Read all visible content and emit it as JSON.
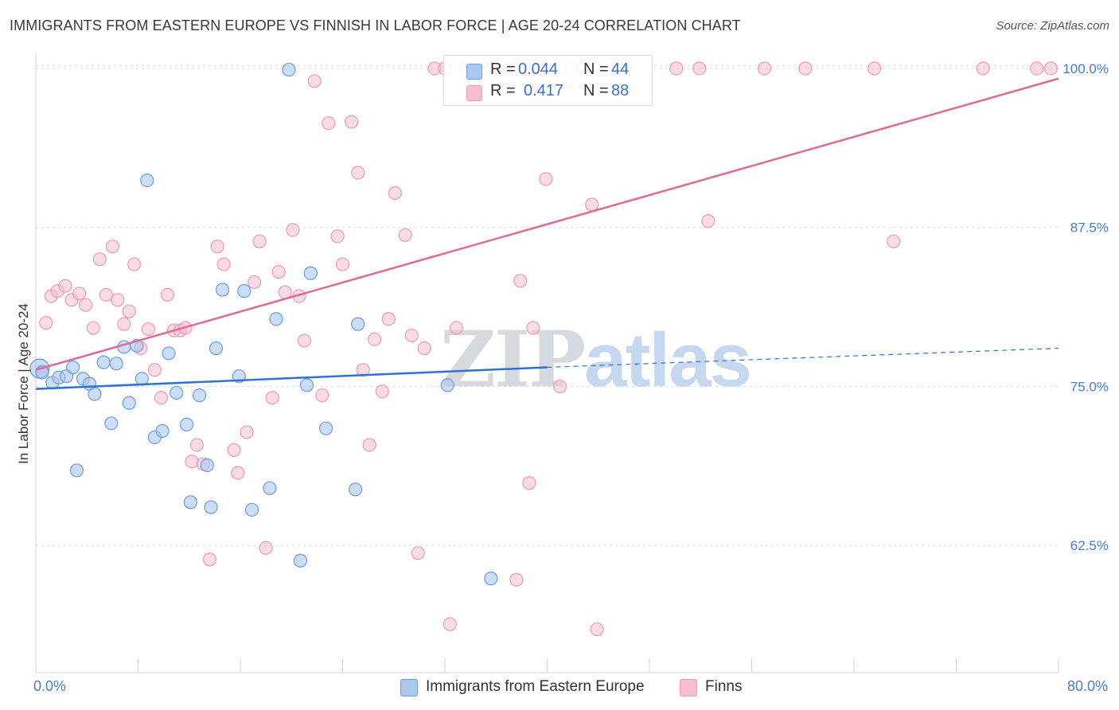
{
  "title": "IMMIGRANTS FROM EASTERN EUROPE VS FINNISH IN LABOR FORCE | AGE 20-24 CORRELATION CHART",
  "source": "Source: ZipAtlas.com",
  "watermark": {
    "part1": "ZIP",
    "part2": "atlas"
  },
  "colors": {
    "series1_fill": "#aac8f0",
    "series1_stroke": "#6c9be0",
    "series1_line": "#2f72d0",
    "series2_fill": "#f7bdd0",
    "series2_stroke": "#e99ab5",
    "series2_line": "#e0689a",
    "axis_label": "#4a7bd0",
    "grid": "#d8dce2"
  },
  "legend_top": {
    "rows": [
      {
        "r_label": "R =",
        "r_value": "0.044",
        "n_label": "N =",
        "n_value": "44"
      },
      {
        "r_label": "R =",
        "r_value": "0.417",
        "n_label": "N =",
        "n_value": "88"
      }
    ]
  },
  "legend_bottom": {
    "items": [
      {
        "label": "Immigrants from Eastern Europe"
      },
      {
        "label": "Finns"
      }
    ]
  },
  "chart_data": {
    "type": "scatter",
    "title": "IMMIGRANTS FROM EASTERN EUROPE VS FINNISH IN LABOR FORCE | AGE 20-24 CORRELATION CHART",
    "xlabel": "",
    "ylabel": "In Labor Force | Age 20-24",
    "xlim": [
      0,
      80
    ],
    "ylim": [
      52.5,
      101.5
    ],
    "x_tick_labels": [
      "0.0%",
      "80.0%"
    ],
    "y_ticks": [
      62.5,
      75.0,
      87.5,
      100.0
    ],
    "y_tick_labels": [
      "62.5%",
      "75.0%",
      "87.5%",
      "100.0%"
    ],
    "grid": true,
    "legend_position": "bottom",
    "series": [
      {
        "name": "Immigrants from Eastern Europe",
        "R": 0.044,
        "N": 44,
        "trend": {
          "x": [
            0,
            40
          ],
          "y": [
            74.8,
            76.5
          ],
          "dashed_extension_to": [
            80,
            78.0
          ]
        },
        "points": [
          [
            0.3,
            76.4
          ],
          [
            0.5,
            76.1
          ],
          [
            1.3,
            75.3
          ],
          [
            1.8,
            75.7
          ],
          [
            2.4,
            75.8
          ],
          [
            2.9,
            76.5
          ],
          [
            3.2,
            68.4
          ],
          [
            3.7,
            75.6
          ],
          [
            4.2,
            75.2
          ],
          [
            4.6,
            74.4
          ],
          [
            5.3,
            76.9
          ],
          [
            5.9,
            72.1
          ],
          [
            6.3,
            76.8
          ],
          [
            6.9,
            78.1
          ],
          [
            7.3,
            73.7
          ],
          [
            7.9,
            78.2
          ],
          [
            8.3,
            75.6
          ],
          [
            8.7,
            91.2
          ],
          [
            9.3,
            71.0
          ],
          [
            9.9,
            71.5
          ],
          [
            10.4,
            77.6
          ],
          [
            11.0,
            74.5
          ],
          [
            11.8,
            72.0
          ],
          [
            12.1,
            65.9
          ],
          [
            12.8,
            74.3
          ],
          [
            13.4,
            68.8
          ],
          [
            13.7,
            65.5
          ],
          [
            14.1,
            78.0
          ],
          [
            14.6,
            82.6
          ],
          [
            15.9,
            75.8
          ],
          [
            16.3,
            82.5
          ],
          [
            16.9,
            65.3
          ],
          [
            18.3,
            67.0
          ],
          [
            18.8,
            80.3
          ],
          [
            19.8,
            99.9
          ],
          [
            20.7,
            61.3
          ],
          [
            21.2,
            75.1
          ],
          [
            21.5,
            83.9
          ],
          [
            22.7,
            71.7
          ],
          [
            25.0,
            66.9
          ],
          [
            25.2,
            79.9
          ],
          [
            32.2,
            75.1
          ],
          [
            35.0,
            100.0
          ],
          [
            35.6,
            59.9
          ]
        ]
      },
      {
        "name": "Finns",
        "R": 0.417,
        "N": 88,
        "trend": {
          "x": [
            0,
            80
          ],
          "y": [
            76.3,
            99.2
          ]
        },
        "points": [
          [
            0.5,
            76.2
          ],
          [
            0.8,
            80.0
          ],
          [
            1.2,
            82.1
          ],
          [
            1.7,
            82.5
          ],
          [
            2.3,
            82.9
          ],
          [
            2.8,
            81.8
          ],
          [
            3.4,
            82.3
          ],
          [
            3.9,
            81.4
          ],
          [
            4.5,
            79.6
          ],
          [
            5.0,
            85.0
          ],
          [
            5.5,
            82.2
          ],
          [
            6.0,
            86.0
          ],
          [
            6.4,
            81.8
          ],
          [
            6.9,
            79.9
          ],
          [
            7.3,
            80.9
          ],
          [
            7.7,
            84.6
          ],
          [
            8.2,
            78.0
          ],
          [
            8.8,
            79.5
          ],
          [
            9.3,
            76.3
          ],
          [
            9.8,
            74.1
          ],
          [
            10.3,
            82.2
          ],
          [
            10.8,
            79.4
          ],
          [
            11.3,
            79.4
          ],
          [
            11.7,
            79.6
          ],
          [
            12.2,
            69.1
          ],
          [
            12.6,
            70.4
          ],
          [
            13.1,
            68.9
          ],
          [
            13.6,
            61.4
          ],
          [
            14.2,
            86.0
          ],
          [
            14.7,
            84.6
          ],
          [
            15.5,
            70.0
          ],
          [
            15.8,
            68.2
          ],
          [
            16.5,
            71.4
          ],
          [
            17.1,
            83.2
          ],
          [
            17.5,
            86.4
          ],
          [
            18.0,
            62.3
          ],
          [
            18.5,
            74.1
          ],
          [
            19.0,
            84.0
          ],
          [
            19.5,
            82.4
          ],
          [
            20.1,
            87.3
          ],
          [
            20.6,
            82.1
          ],
          [
            21.0,
            78.6
          ],
          [
            21.8,
            99.0
          ],
          [
            22.4,
            74.3
          ],
          [
            22.9,
            95.7
          ],
          [
            23.6,
            86.8
          ],
          [
            24.0,
            84.6
          ],
          [
            24.7,
            95.8
          ],
          [
            25.2,
            91.8
          ],
          [
            25.6,
            76.3
          ],
          [
            26.1,
            70.4
          ],
          [
            26.5,
            78.7
          ],
          [
            27.1,
            74.6
          ],
          [
            27.6,
            80.3
          ],
          [
            28.1,
            90.2
          ],
          [
            28.9,
            86.9
          ],
          [
            29.4,
            79.0
          ],
          [
            29.9,
            61.9
          ],
          [
            30.4,
            78.0
          ],
          [
            31.2,
            100.0
          ],
          [
            32.0,
            100.0
          ],
          [
            32.4,
            56.3
          ],
          [
            32.9,
            79.6
          ],
          [
            33.6,
            100.0
          ],
          [
            34.3,
            100.0
          ],
          [
            35.8,
            100.0
          ],
          [
            37.4,
            100.0
          ],
          [
            37.6,
            59.8
          ],
          [
            37.9,
            83.3
          ],
          [
            38.6,
            67.4
          ],
          [
            38.9,
            79.6
          ],
          [
            39.6,
            100.0
          ],
          [
            39.9,
            91.3
          ],
          [
            41.0,
            75.0
          ],
          [
            41.9,
            100.0
          ],
          [
            43.5,
            89.3
          ],
          [
            43.9,
            55.9
          ],
          [
            46.0,
            100.0
          ],
          [
            50.1,
            100.0
          ],
          [
            51.9,
            100.0
          ],
          [
            52.6,
            88.0
          ],
          [
            57.0,
            100.0
          ],
          [
            60.2,
            100.0
          ],
          [
            65.6,
            100.0
          ],
          [
            67.1,
            86.4
          ],
          [
            74.1,
            100.0
          ],
          [
            78.3,
            100.0
          ],
          [
            79.4,
            100.0
          ]
        ]
      }
    ]
  }
}
